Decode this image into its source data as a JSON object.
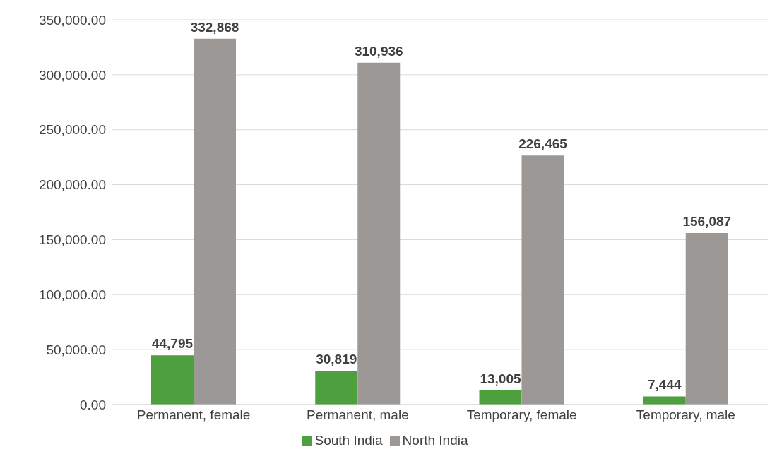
{
  "chart_data": {
    "type": "bar",
    "categories": [
      "Permanent, female",
      "Permanent, male",
      "Temporary, female",
      "Temporary, male"
    ],
    "series": [
      {
        "name": "South India",
        "color": "#4e9f3d",
        "values": [
          44795,
          30819,
          13005,
          7444
        ],
        "value_labels": [
          "44,795",
          "30,819",
          "13,005",
          "7,444"
        ]
      },
      {
        "name": "North India",
        "color": "#9b9896",
        "values": [
          332868,
          310936,
          226465,
          156087
        ],
        "value_labels": [
          "332,868",
          "310,936",
          "226,465",
          "156,087"
        ]
      }
    ],
    "ylim": [
      0,
      350000
    ],
    "yticks": [
      {
        "value": 0,
        "label": "0.00"
      },
      {
        "value": 50000,
        "label": "50,000.00"
      },
      {
        "value": 100000,
        "label": "100,000.00"
      },
      {
        "value": 150000,
        "label": "150,000.00"
      },
      {
        "value": 200000,
        "label": "200,000.00"
      },
      {
        "value": 250000,
        "label": "250,000.00"
      },
      {
        "value": 300000,
        "label": "300,000.00"
      },
      {
        "value": 350000,
        "label": "350,000.00"
      }
    ],
    "grid": "y",
    "legend": "bottom"
  }
}
